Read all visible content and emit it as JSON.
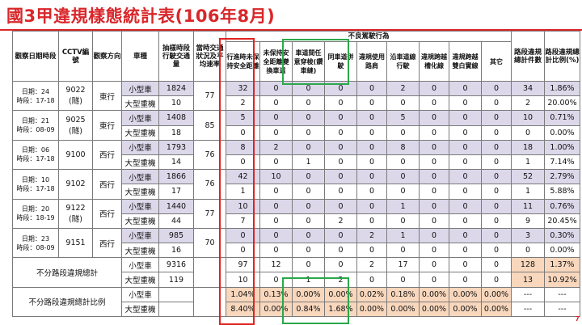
{
  "title": "國3甲違規樣態統計表(106年8月)",
  "page_number": "7",
  "headers": {
    "location_time": "觀察日期時段",
    "cctv": "CCTV編號",
    "direction": "觀察方向",
    "vehicle_type": "車種",
    "sample_volume": "抽樣時段行駛交通量",
    "traffic_speed": "當時交通狀況及平均速率",
    "bad_behavior_group": "不良駕駛行為",
    "violations": [
      "行進時未保持安全距離",
      "未保持安全距離變換車道",
      "車道間任意穿梭(鑽車縫)",
      "同車道併駛",
      "違規使用路肩",
      "沿車道線行駛",
      "違規跨越槽化線",
      "違規跨越雙白實線",
      "其它"
    ],
    "segment_total": "路段違規總計件數",
    "segment_ratio": "路段違規總計比例(%)"
  },
  "rows": [
    {
      "date": "日期：24",
      "period": "時段：17-18",
      "cctv": "9022",
      "cctv_note": "(隧)",
      "direction": "東行",
      "speed": "77",
      "types": [
        {
          "type": "小型車",
          "volume": "1824",
          "counts": [
            "32",
            "0",
            "0",
            "0",
            "0",
            "2",
            "0",
            "0",
            "0"
          ],
          "total": "34",
          "ratio": "1.86%"
        },
        {
          "type": "大型重機",
          "volume": "10",
          "counts": [
            "2",
            "0",
            "0",
            "0",
            "0",
            "0",
            "0",
            "0",
            "0"
          ],
          "total": "2",
          "ratio": "20.00%"
        }
      ]
    },
    {
      "date": "日期：21",
      "period": "時段：08-09",
      "cctv": "9025",
      "cctv_note": "(隧)",
      "direction": "東行",
      "speed": "85",
      "types": [
        {
          "type": "小型車",
          "volume": "1408",
          "counts": [
            "5",
            "0",
            "0",
            "0",
            "0",
            "5",
            "0",
            "0",
            "0"
          ],
          "total": "10",
          "ratio": "0.71%"
        },
        {
          "type": "大型重機",
          "volume": "18",
          "counts": [
            "0",
            "0",
            "0",
            "0",
            "0",
            "0",
            "0",
            "0",
            "0"
          ],
          "total": "0",
          "ratio": "0.00%"
        }
      ]
    },
    {
      "date": "日期：06",
      "period": "時段：17-18",
      "cctv": "9100",
      "cctv_note": "",
      "direction": "西行",
      "speed": "76",
      "types": [
        {
          "type": "小型車",
          "volume": "1793",
          "counts": [
            "8",
            "2",
            "0",
            "0",
            "0",
            "8",
            "0",
            "0",
            "0"
          ],
          "total": "18",
          "ratio": "1.00%"
        },
        {
          "type": "大型重機",
          "volume": "14",
          "counts": [
            "0",
            "0",
            "1",
            "0",
            "0",
            "0",
            "0",
            "0",
            "0"
          ],
          "total": "1",
          "ratio": "7.14%"
        }
      ]
    },
    {
      "date": "日期：10",
      "period": "時段：17-18",
      "cctv": "9102",
      "cctv_note": "",
      "direction": "西行",
      "speed": "76",
      "types": [
        {
          "type": "小型車",
          "volume": "1866",
          "counts": [
            "42",
            "10",
            "0",
            "0",
            "0",
            "0",
            "0",
            "0",
            "0"
          ],
          "total": "52",
          "ratio": "2.79%"
        },
        {
          "type": "大型重機",
          "volume": "17",
          "counts": [
            "1",
            "0",
            "0",
            "0",
            "0",
            "0",
            "0",
            "0",
            "0"
          ],
          "total": "1",
          "ratio": "5.88%"
        }
      ]
    },
    {
      "date": "日期：20",
      "period": "時段：18-19",
      "cctv": "9122",
      "cctv_note": "(隧)",
      "direction": "西行",
      "speed": "77",
      "types": [
        {
          "type": "小型車",
          "volume": "1440",
          "counts": [
            "10",
            "0",
            "0",
            "0",
            "0",
            "1",
            "0",
            "0",
            "0"
          ],
          "total": "11",
          "ratio": "0.76%"
        },
        {
          "type": "大型重機",
          "volume": "44",
          "counts": [
            "7",
            "0",
            "0",
            "2",
            "0",
            "0",
            "0",
            "0",
            "0"
          ],
          "total": "9",
          "ratio": "20.45%"
        }
      ]
    },
    {
      "date": "日期：23",
      "period": "時段：08-09",
      "cctv": "9151",
      "cctv_note": "",
      "direction": "西行",
      "speed": "70",
      "types": [
        {
          "type": "小型車",
          "volume": "985",
          "counts": [
            "0",
            "0",
            "0",
            "0",
            "2",
            "1",
            "0",
            "0",
            "0"
          ],
          "total": "3",
          "ratio": "0.30%"
        },
        {
          "type": "大型重機",
          "volume": "16",
          "counts": [
            "0",
            "0",
            "0",
            "0",
            "0",
            "0",
            "0",
            "0",
            "0"
          ],
          "total": "0",
          "ratio": "0.00%"
        }
      ]
    }
  ],
  "summary_total": {
    "label": "不分路段違規總計",
    "types": [
      {
        "type": "小型車",
        "volume": "9316",
        "counts": [
          "97",
          "12",
          "0",
          "0",
          "2",
          "17",
          "0",
          "0",
          "0"
        ],
        "total": "128",
        "ratio": "1.37%"
      },
      {
        "type": "大型重機",
        "volume": "119",
        "counts": [
          "10",
          "0",
          "1",
          "2",
          "0",
          "0",
          "0",
          "0",
          "0"
        ],
        "total": "13",
        "ratio": "10.92%"
      }
    ]
  },
  "summary_ratio": {
    "label": "不分路段違規總計比例",
    "types": [
      {
        "type": "小型車",
        "values": [
          "1.04%",
          "0.13%",
          "0.00%",
          "0.00%",
          "0.02%",
          "0.18%",
          "0.00%",
          "0.00%",
          "0.00%"
        ],
        "total": "---",
        "ratio": "---"
      },
      {
        "type": "大型重機",
        "values": [
          "8.40%",
          "0.00%",
          "0.84%",
          "1.68%",
          "0.00%",
          "0.00%",
          "0.00%",
          "0.00%",
          "0.00%"
        ],
        "total": "---",
        "ratio": "---"
      }
    ]
  },
  "colors": {
    "title": "#d9262a",
    "row_tint": "#dcd8ea",
    "summary_tint": "#f8d7bd",
    "highlight_red": "#e02222",
    "highlight_green": "#2aa84a"
  }
}
